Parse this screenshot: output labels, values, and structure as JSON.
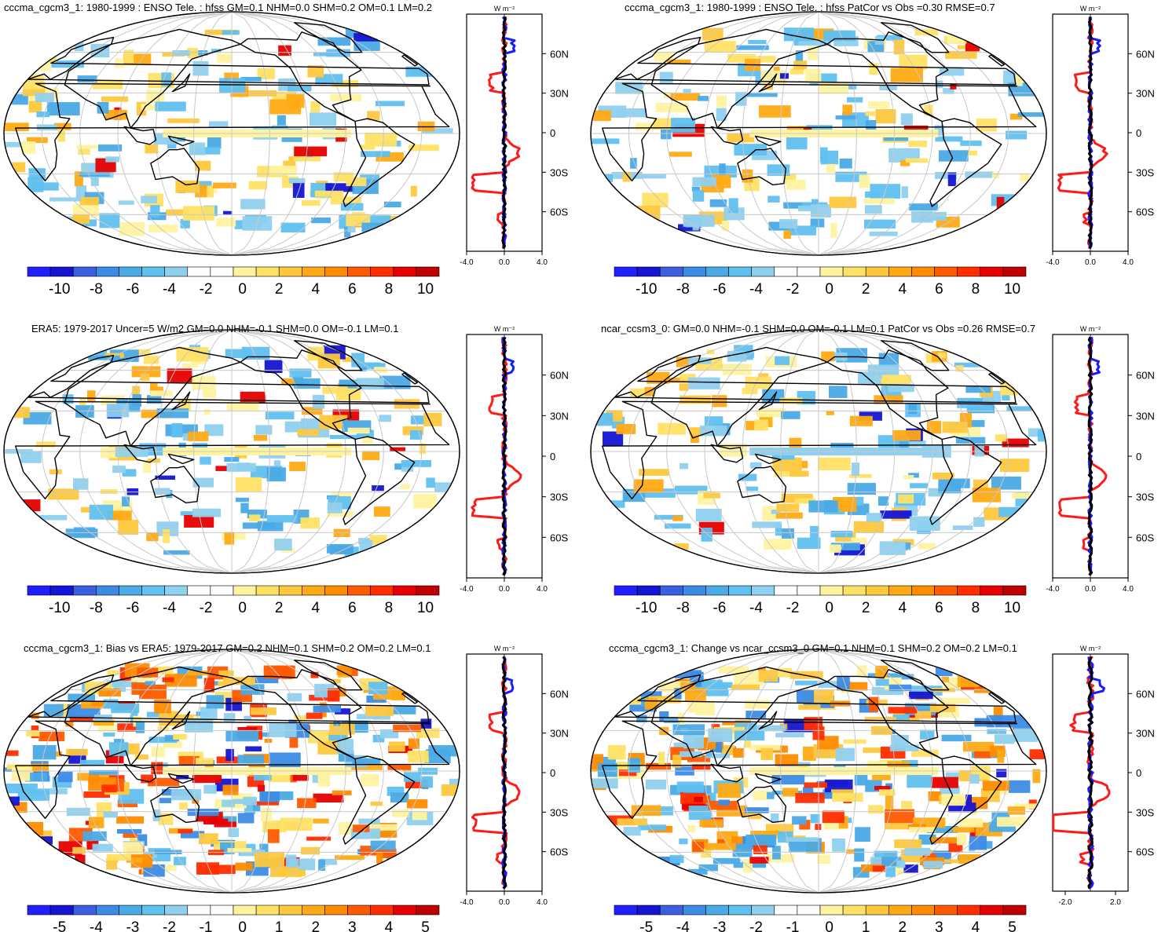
{
  "chart_data": [
    {
      "type": "heatmap",
      "title": "cccma_cgcm3_1: 1980-1999 : ENSO Tele. : hfss GM=0.1 NHM=0.0 SHM=0.2 OM=0.1 LM=0.2",
      "colorbar_ticks": [
        "-10",
        "-8",
        "-6",
        "-4",
        "-2",
        "0",
        "2",
        "4",
        "6",
        "8",
        "10"
      ],
      "side_plot": {
        "unit_label": "W m⁻²",
        "y_ticks": [
          "60N",
          "30N",
          "0",
          "30S",
          "60S"
        ],
        "x_ticks": [
          "-4.0",
          "0.0",
          "4.0"
        ],
        "xlim": [
          -4,
          4
        ]
      }
    },
    {
      "type": "heatmap",
      "title": "cccma_cgcm3_1: 1980-1999 : ENSO Tele. : hfss PatCor vs Obs =0.30 RMSE=0.7",
      "colorbar_ticks": [
        "-10",
        "-8",
        "-6",
        "-4",
        "-2",
        "0",
        "2",
        "4",
        "6",
        "8",
        "10"
      ],
      "side_plot": {
        "unit_label": "W m⁻²",
        "y_ticks": [
          "60N",
          "30N",
          "0",
          "30S",
          "60S"
        ],
        "x_ticks": [
          "-4.0",
          "0.0",
          "4.0"
        ],
        "xlim": [
          -4,
          4
        ]
      }
    },
    {
      "type": "heatmap",
      "title": "ERA5: 1979-2017 Uncer=5 W/m2 GM=0.0 NHM=-0.1 SHM=0.0 OM=-0.1 LM=0.1",
      "colorbar_ticks": [
        "-10",
        "-8",
        "-6",
        "-4",
        "-2",
        "0",
        "2",
        "4",
        "6",
        "8",
        "10"
      ],
      "side_plot": {
        "unit_label": "W m⁻²",
        "y_ticks": [
          "60N",
          "30N",
          "0",
          "30S",
          "60S"
        ],
        "x_ticks": [
          "-4.0",
          "0.0",
          "4.0"
        ],
        "xlim": [
          -4,
          4
        ]
      }
    },
    {
      "type": "heatmap",
      "title": "ncar_ccsm3_0: GM=0.0 NHM=-0.1 SHM=0.0 OM=-0.1 LM=0.1 PatCor vs Obs =0.26 RMSE=0.7",
      "colorbar_ticks": [
        "-10",
        "-8",
        "-6",
        "-4",
        "-2",
        "0",
        "2",
        "4",
        "6",
        "8",
        "10"
      ],
      "side_plot": {
        "unit_label": "W m⁻²",
        "y_ticks": [
          "60N",
          "30N",
          "0",
          "30S",
          "60S"
        ],
        "x_ticks": [
          "-4.0",
          "0.0",
          "4.0"
        ],
        "xlim": [
          -4,
          4
        ]
      }
    },
    {
      "type": "heatmap",
      "title": "cccma_cgcm3_1: Bias vs ERA5: 1979-2017 GM=0.2 NHM=0.1 SHM=0.2 OM=0.2 LM=0.1",
      "colorbar_ticks": [
        "-5",
        "-4",
        "-3",
        "-2",
        "-1",
        "0",
        "1",
        "2",
        "3",
        "4",
        "5"
      ],
      "side_plot": {
        "unit_label": "W m⁻²",
        "y_ticks": [
          "60N",
          "30N",
          "0",
          "30S",
          "60S"
        ],
        "x_ticks": [
          "-4.0",
          "0.0",
          "4.0"
        ],
        "xlim": [
          -4,
          4
        ]
      }
    },
    {
      "type": "heatmap",
      "title": "cccma_cgcm3_1: Change vs ncar_ccsm3_0 GM=0.1 NHM=0.1 SHM=0.2 OM=0.2 LM=0.1",
      "colorbar_ticks": [
        "-5",
        "-4",
        "-3",
        "-2",
        "-1",
        "0",
        "1",
        "2",
        "3",
        "4",
        "5"
      ],
      "side_plot": {
        "unit_label": "W m⁻²",
        "y_ticks": [
          "60N",
          "30N",
          "0",
          "30S",
          "60S"
        ],
        "x_ticks": [
          "-2.0",
          "2.0"
        ],
        "xlim": [
          -3,
          3
        ]
      }
    }
  ],
  "colors": {
    "colorbar": [
      "#2020ff",
      "#1414d2",
      "#3a5fe0",
      "#3c8ce6",
      "#4aaae6",
      "#60c0f0",
      "#8fd0ee",
      "#ffffff",
      "#ffffff",
      "#fff3a0",
      "#ffe165",
      "#ffc83c",
      "#ffaa14",
      "#ff8c00",
      "#ff5a00",
      "#ff2d00",
      "#e60000",
      "#c00000"
    ],
    "line_red": "#ff1a1a",
    "line_blue": "#1a1aff",
    "line_black": "#000000",
    "gridline": "#c8c8c8"
  }
}
